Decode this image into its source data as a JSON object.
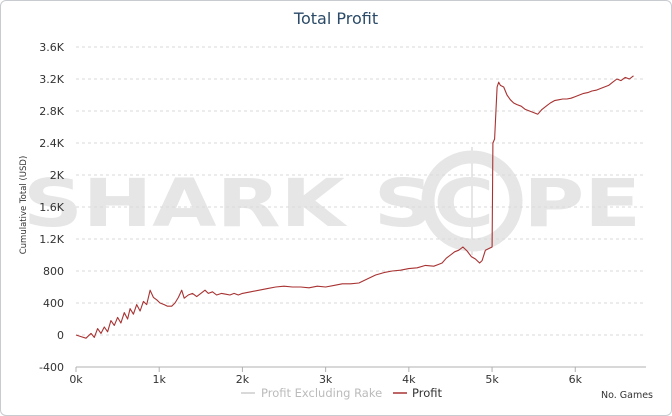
{
  "chart_data": {
    "type": "line",
    "title": "Total Profit",
    "ylabel": "Cumulative Total (USD)",
    "xlabel": "No. Games",
    "xlim": [
      0,
      6850
    ],
    "ylim": [
      -400,
      3600
    ],
    "x_ticks": [
      {
        "value": 0,
        "label": "0k"
      },
      {
        "value": 1000,
        "label": "1k"
      },
      {
        "value": 2000,
        "label": "2k"
      },
      {
        "value": 3000,
        "label": "3k"
      },
      {
        "value": 4000,
        "label": "4k"
      },
      {
        "value": 5000,
        "label": "5k"
      },
      {
        "value": 6000,
        "label": "6k"
      }
    ],
    "y_ticks": [
      {
        "value": -400,
        "label": "-400"
      },
      {
        "value": 0,
        "label": "0"
      },
      {
        "value": 400,
        "label": "400"
      },
      {
        "value": 800,
        "label": "800"
      },
      {
        "value": 1200,
        "label": "1.2K"
      },
      {
        "value": 1600,
        "label": "1.6K"
      },
      {
        "value": 2000,
        "label": "2K"
      },
      {
        "value": 2400,
        "label": "2.4K"
      },
      {
        "value": 2800,
        "label": "2.8K"
      },
      {
        "value": 3200,
        "label": "3.2K"
      },
      {
        "value": 3600,
        "label": "3.6K"
      }
    ],
    "grid": true,
    "legend_position": "bottom",
    "watermark": "SHARK SCOPE",
    "series": [
      {
        "name": "Profit Excluding Rake",
        "color": "#cccccc",
        "points": []
      },
      {
        "name": "Profit",
        "color": "#a83232",
        "points": [
          [
            0,
            0
          ],
          [
            60,
            -20
          ],
          [
            120,
            -40
          ],
          [
            180,
            20
          ],
          [
            220,
            -30
          ],
          [
            260,
            80
          ],
          [
            300,
            20
          ],
          [
            340,
            100
          ],
          [
            380,
            40
          ],
          [
            420,
            180
          ],
          [
            460,
            120
          ],
          [
            500,
            220
          ],
          [
            540,
            150
          ],
          [
            580,
            280
          ],
          [
            620,
            200
          ],
          [
            650,
            330
          ],
          [
            690,
            260
          ],
          [
            730,
            380
          ],
          [
            770,
            300
          ],
          [
            810,
            420
          ],
          [
            850,
            380
          ],
          [
            890,
            560
          ],
          [
            930,
            470
          ],
          [
            970,
            440
          ],
          [
            1010,
            400
          ],
          [
            1060,
            380
          ],
          [
            1100,
            360
          ],
          [
            1150,
            360
          ],
          [
            1190,
            400
          ],
          [
            1230,
            470
          ],
          [
            1270,
            560
          ],
          [
            1300,
            460
          ],
          [
            1350,
            500
          ],
          [
            1400,
            520
          ],
          [
            1450,
            480
          ],
          [
            1500,
            520
          ],
          [
            1550,
            560
          ],
          [
            1590,
            520
          ],
          [
            1640,
            540
          ],
          [
            1690,
            500
          ],
          [
            1750,
            520
          ],
          [
            1800,
            510
          ],
          [
            1850,
            500
          ],
          [
            1900,
            520
          ],
          [
            1950,
            500
          ],
          [
            2000,
            520
          ],
          [
            2100,
            540
          ],
          [
            2200,
            560
          ],
          [
            2300,
            580
          ],
          [
            2400,
            600
          ],
          [
            2500,
            610
          ],
          [
            2600,
            600
          ],
          [
            2700,
            600
          ],
          [
            2800,
            590
          ],
          [
            2900,
            610
          ],
          [
            3000,
            600
          ],
          [
            3100,
            620
          ],
          [
            3200,
            640
          ],
          [
            3300,
            640
          ],
          [
            3400,
            650
          ],
          [
            3500,
            700
          ],
          [
            3600,
            750
          ],
          [
            3700,
            780
          ],
          [
            3800,
            800
          ],
          [
            3900,
            810
          ],
          [
            4000,
            830
          ],
          [
            4100,
            840
          ],
          [
            4200,
            870
          ],
          [
            4300,
            860
          ],
          [
            4350,
            880
          ],
          [
            4400,
            900
          ],
          [
            4450,
            960
          ],
          [
            4500,
            1000
          ],
          [
            4550,
            1040
          ],
          [
            4600,
            1060
          ],
          [
            4650,
            1100
          ],
          [
            4700,
            1050
          ],
          [
            4750,
            980
          ],
          [
            4800,
            950
          ],
          [
            4850,
            900
          ],
          [
            4880,
            930
          ],
          [
            4920,
            1060
          ],
          [
            4960,
            1080
          ],
          [
            5000,
            1100
          ],
          [
            5010,
            2400
          ],
          [
            5030,
            2450
          ],
          [
            5060,
            3100
          ],
          [
            5080,
            3160
          ],
          [
            5100,
            3120
          ],
          [
            5140,
            3100
          ],
          [
            5180,
            3000
          ],
          [
            5220,
            2940
          ],
          [
            5260,
            2900
          ],
          [
            5300,
            2880
          ],
          [
            5350,
            2860
          ],
          [
            5400,
            2820
          ],
          [
            5450,
            2800
          ],
          [
            5500,
            2780
          ],
          [
            5550,
            2760
          ],
          [
            5600,
            2820
          ],
          [
            5650,
            2860
          ],
          [
            5700,
            2900
          ],
          [
            5750,
            2930
          ],
          [
            5800,
            2940
          ],
          [
            5850,
            2950
          ],
          [
            5900,
            2950
          ],
          [
            5950,
            2960
          ],
          [
            6000,
            2980
          ],
          [
            6050,
            3000
          ],
          [
            6100,
            3020
          ],
          [
            6150,
            3030
          ],
          [
            6200,
            3050
          ],
          [
            6250,
            3060
          ],
          [
            6300,
            3080
          ],
          [
            6350,
            3100
          ],
          [
            6400,
            3120
          ],
          [
            6450,
            3160
          ],
          [
            6500,
            3200
          ],
          [
            6550,
            3180
          ],
          [
            6600,
            3220
          ],
          [
            6650,
            3200
          ],
          [
            6700,
            3240
          ]
        ]
      }
    ]
  }
}
